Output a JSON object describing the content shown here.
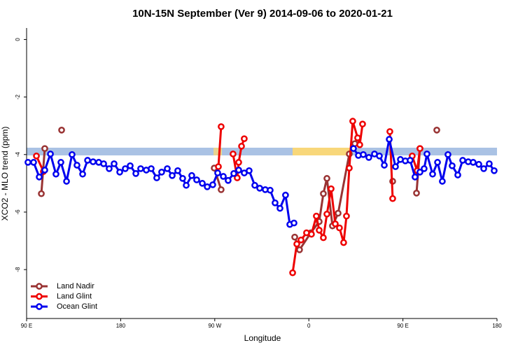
{
  "chart_data": {
    "type": "line",
    "title": "10N-15N September (Ver 9)   2014-09-06 to 2020-01-21",
    "x_label": "Longitude",
    "y_label": "XCO2 - MLO trend (ppm)",
    "xlim": [
      90,
      540
    ],
    "ylim": [
      -9.7,
      0.4
    ],
    "xticks": [
      {
        "value": 90,
        "label": "90 E"
      },
      {
        "value": 180,
        "label": "180"
      },
      {
        "value": 270,
        "label": "90 W"
      },
      {
        "value": 360,
        "label": "0"
      },
      {
        "value": 450,
        "label": "90 E"
      },
      {
        "value": 540,
        "label": "180"
      }
    ],
    "yticks": [
      0,
      -2,
      -4,
      -6,
      -8
    ],
    "legend": "bottomleft",
    "series": [
      {
        "name": "Land Nadir",
        "color": "#993333",
        "x": [
          104.1,
          107.4,
          null,
          123.5,
          null,
          269.5,
          276.1,
          null,
          346.5,
          351.1,
          361.9,
          369.9,
          373.9,
          377.3,
          382.6,
          388.0,
          398.7,
          404.0,
          null,
          440.2,
          null,
          463.0,
          466.3,
          null,
          482.4
        ],
        "values": [
          -5.36,
          -3.79,
          null,
          -3.15,
          null,
          -4.47,
          -5.22,
          null,
          -6.87,
          -7.31,
          -6.72,
          -6.33,
          -5.36,
          -4.83,
          -6.48,
          -6.04,
          -3.98,
          -3.62,
          null,
          -4.93,
          null,
          -5.34,
          -3.79,
          null,
          -3.15
        ]
      },
      {
        "name": "Land Glint",
        "color": "#ee0000",
        "x": [
          99.4,
          106.1,
          null,
          273.5,
          276.1,
          null,
          287.5,
          291.5,
          292.9,
          295.6,
          298.2,
          null,
          344.5,
          348.5,
          352.5,
          357.8,
          362.5,
          367.2,
          369.9,
          373.9,
          377.3,
          381.3,
          385.3,
          389.3,
          393.3,
          396.0,
          398.7,
          402.0,
          406.7,
          408.7,
          411.4,
          null,
          437.5,
          440.2,
          null,
          458.9,
          463.6,
          466.3
        ],
        "values": [
          -4.05,
          -4.59,
          null,
          -4.42,
          -3.03,
          null,
          -3.98,
          -4.81,
          -4.27,
          -3.71,
          -3.45,
          null,
          -8.11,
          -7.11,
          -6.97,
          -6.72,
          -6.77,
          -6.14,
          -6.63,
          -6.89,
          -6.07,
          -5.19,
          -6.41,
          -6.55,
          -7.06,
          -6.14,
          -4.47,
          -2.84,
          -3.42,
          -3.66,
          -2.94,
          null,
          -3.2,
          -5.53,
          null,
          -4.05,
          -4.56,
          -3.79
        ]
      },
      {
        "name": "Ocean Glint",
        "color": "#0000ee",
        "x": [
          91.3,
          96.7,
          102.1,
          107.4,
          112.8,
          118.1,
          122.8,
          128.2,
          133.5,
          138.2,
          143.6,
          148.3,
          153.6,
          159.0,
          163.7,
          169.0,
          173.7,
          179.1,
          184.4,
          189.1,
          194.5,
          199.1,
          204.5,
          209.2,
          214.5,
          219.2,
          224.6,
          229.3,
          234.6,
          239.3,
          242.7,
          248.0,
          252.7,
          258.1,
          262.8,
          268.1,
          272.8,
          278.2,
          282.8,
          288.2,
          292.9,
          298.2,
          302.9,
          308.3,
          313.0,
          318.3,
          323.0,
          327.7,
          332.4,
          337.7,
          341.8,
          345.8,
          null,
          402.7,
          407.4,
          412.1,
          417.4,
          422.8,
          427.5,
          432.2,
          436.9,
          442.9,
          447.6,
          452.3,
          456.9,
          461.6,
          466.3,
          470.3,
          473.0,
          478.4,
          483.1,
          487.7,
          493.1,
          497.1,
          502.5,
          507.2,
          512.5,
          517.2,
          522.6,
          527.3,
          532.6,
          537.3
        ],
        "values": [
          -4.27,
          -4.27,
          -4.78,
          -4.54,
          -3.98,
          -4.68,
          -4.27,
          -4.93,
          -4.0,
          -4.37,
          -4.68,
          -4.2,
          -4.25,
          -4.27,
          -4.32,
          -4.49,
          -4.32,
          -4.61,
          -4.49,
          -4.39,
          -4.66,
          -4.49,
          -4.54,
          -4.49,
          -4.81,
          -4.61,
          -4.49,
          -4.73,
          -4.56,
          -4.83,
          -5.07,
          -4.73,
          -4.88,
          -5.0,
          -5.12,
          -5.05,
          -4.64,
          -4.76,
          -4.9,
          -4.66,
          -4.54,
          -4.64,
          -4.56,
          -5.07,
          -5.17,
          -5.22,
          -5.24,
          -5.68,
          -5.87,
          -5.41,
          -6.43,
          -6.38,
          null,
          -3.79,
          -4.03,
          -4.0,
          -4.1,
          -3.98,
          -4.05,
          -4.37,
          -3.47,
          -4.42,
          -4.17,
          -4.22,
          -4.2,
          -4.78,
          -4.61,
          -4.49,
          -3.98,
          -4.68,
          -4.27,
          -4.93,
          -4.0,
          -4.39,
          -4.71,
          -4.2,
          -4.25,
          -4.27,
          -4.34,
          -4.49,
          -4.32,
          -4.56
        ]
      }
    ]
  }
}
